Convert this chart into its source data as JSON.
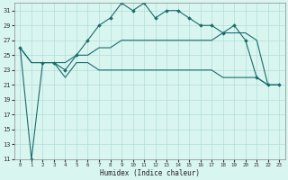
{
  "title": "",
  "xlabel": "Humidex (Indice chaleur)",
  "bg_color": "#d9f5f0",
  "grid_color": "#b0ddd8",
  "line_color": "#1a6b6b",
  "xlim": [
    -0.5,
    23.5
  ],
  "ylim": [
    11,
    32
  ],
  "yticks": [
    11,
    13,
    15,
    17,
    19,
    21,
    23,
    25,
    27,
    29,
    31
  ],
  "xticks": [
    0,
    1,
    2,
    3,
    4,
    5,
    6,
    7,
    8,
    9,
    10,
    11,
    12,
    13,
    14,
    15,
    16,
    17,
    18,
    19,
    20,
    21,
    22,
    23
  ],
  "line1_x": [
    0,
    1,
    2,
    3,
    4,
    5,
    6,
    7,
    8,
    9,
    10,
    11,
    12,
    13,
    14,
    15,
    16,
    17,
    18,
    19,
    20,
    21,
    22,
    23
  ],
  "line1_y": [
    26,
    11,
    24,
    24,
    23,
    25,
    27,
    29,
    30,
    32,
    31,
    32,
    30,
    31,
    31,
    30,
    29,
    29,
    28,
    29,
    27,
    22,
    21,
    21
  ],
  "line2_x": [
    0,
    1,
    2,
    3,
    4,
    5,
    6,
    7,
    8,
    9,
    10,
    11,
    12,
    13,
    14,
    15,
    16,
    17,
    18,
    19,
    20,
    21,
    22,
    23
  ],
  "line2_y": [
    26,
    24,
    24,
    24,
    24,
    25,
    25,
    26,
    26,
    27,
    27,
    27,
    27,
    27,
    27,
    27,
    27,
    27,
    28,
    28,
    28,
    27,
    21,
    21
  ],
  "line3_x": [
    0,
    1,
    2,
    3,
    4,
    5,
    6,
    7,
    8,
    9,
    10,
    11,
    12,
    13,
    14,
    15,
    16,
    17,
    18,
    19,
    20,
    21,
    22,
    23
  ],
  "line3_y": [
    26,
    24,
    24,
    24,
    22,
    24,
    24,
    23,
    23,
    23,
    23,
    23,
    23,
    23,
    23,
    23,
    23,
    23,
    22,
    22,
    22,
    22,
    21,
    21
  ]
}
